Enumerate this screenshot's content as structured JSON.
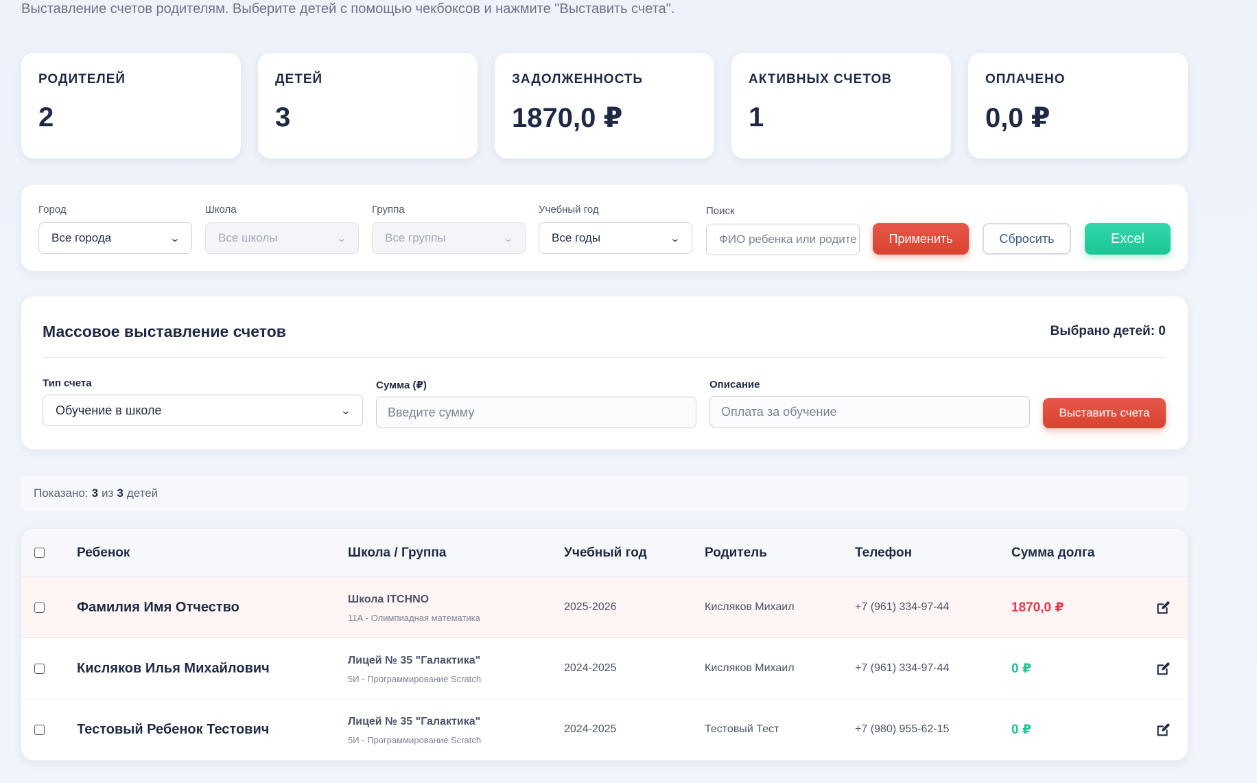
{
  "intro": "Выставление счетов родителям. Выберите детей с помощью чекбоксов и нажмите \"Выставить счета\".",
  "stats": [
    {
      "label": "РОДИТЕЛЕЙ",
      "value": "2"
    },
    {
      "label": "ДЕТЕЙ",
      "value": "3"
    },
    {
      "label": "ЗАДОЛЖЕННОСТЬ",
      "value": "1870,0 ₽"
    },
    {
      "label": "АКТИВНЫХ СЧЕТОВ",
      "value": "1"
    },
    {
      "label": "ОПЛАЧЕНО",
      "value": "0,0 ₽"
    }
  ],
  "filters": {
    "city": {
      "label": "Город",
      "value": "Все города"
    },
    "school": {
      "label": "Школа",
      "value": "Все школы"
    },
    "group": {
      "label": "Группа",
      "value": "Все группы"
    },
    "year": {
      "label": "Учебный год",
      "value": "Все годы"
    },
    "search": {
      "label": "Поиск",
      "placeholder": "ФИО ребенка или родите"
    },
    "apply": "Применить",
    "reset": "Сбросить",
    "excel": "Excel"
  },
  "mass": {
    "title": "Массовое выставление счетов",
    "selected": "Выбрано детей: 0",
    "type_label": "Тип счета",
    "type_value": "Обучение в школе",
    "sum_label": "Сумма (₽)",
    "sum_placeholder": "Введите сумму",
    "desc_label": "Описание",
    "desc_placeholder": "Оплата за обучение",
    "submit": "Выставить счета"
  },
  "showing": {
    "prefix": "Показано:",
    "shown": "3",
    "mid": "из",
    "total": "3",
    "suffix": "детей"
  },
  "table": {
    "headers": {
      "child": "Ребенок",
      "school": "Школа / Группа",
      "year": "Учебный год",
      "parent": "Родитель",
      "phone": "Телефон",
      "debt": "Сумма долга"
    },
    "rows": [
      {
        "child": "Фамилия Имя Отчество",
        "school": "Школа ITCHNO",
        "group": "11А - Олимпиадная математика",
        "year": "2025-2026",
        "parent": "Кисляков Михаил",
        "phone": "+7 (961) 334-97-44",
        "debt": "1870,0 ₽"
      },
      {
        "child": "Кисляков Илья Михайлович",
        "school": "Лицей № 35 \"Галактика\"",
        "group": "5И - Программирование Scratch",
        "year": "2024-2025",
        "parent": "Кисляков Михаил",
        "phone": "+7 (961) 334-97-44",
        "debt": "0 ₽"
      },
      {
        "child": "Тестовый Ребенок Тестович",
        "school": "Лицей № 35 \"Галактика\"",
        "group": "5И - Программирование Scratch",
        "year": "2024-2025",
        "parent": "Тестовый Тест",
        "phone": "+7 (980) 955-62-15",
        "debt": "0 ₽"
      }
    ]
  },
  "colors": {
    "accent_red": "#e23b4e",
    "accent_green": "#1fc496",
    "button_red": "#de4b3b",
    "dark_text": "#1e2a45"
  }
}
